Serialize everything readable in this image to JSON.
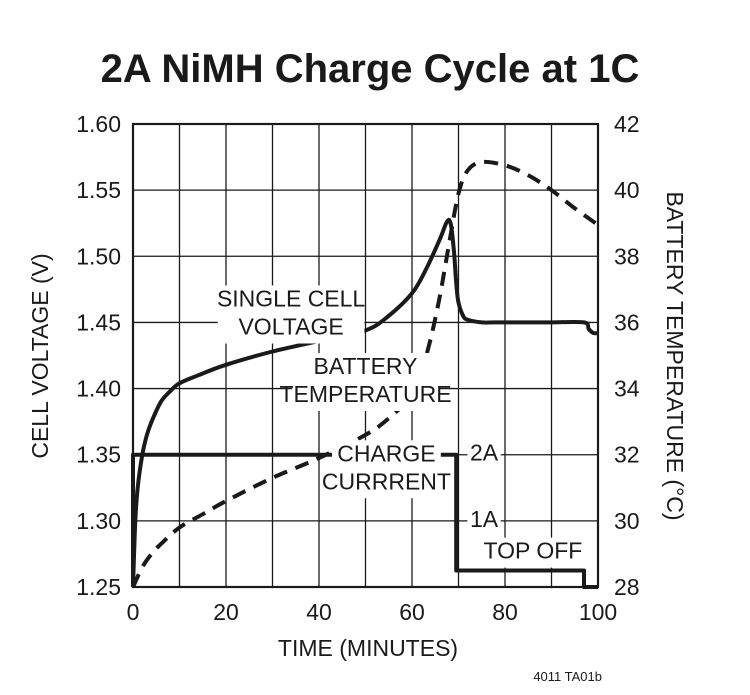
{
  "chart_data": {
    "type": "line",
    "title": "2A NiMH Charge Cycle at 1C",
    "xlabel": "TIME (MINUTES)",
    "ylabel": "CELL VOLTAGE (V)",
    "y2label": "BATTERY TEMPERATURE (°C)",
    "xlim": [
      0,
      100
    ],
    "ylim": [
      1.25,
      1.6
    ],
    "y2lim": [
      28,
      42
    ],
    "grid": true,
    "x_ticks": [
      "0",
      "20",
      "40",
      "60",
      "80",
      "100"
    ],
    "y_ticks": [
      "1.25",
      "1.30",
      "1.35",
      "1.40",
      "1.45",
      "1.50",
      "1.55",
      "1.60"
    ],
    "y2_ticks": [
      "28",
      "30",
      "32",
      "34",
      "36",
      "38",
      "40",
      "42"
    ],
    "series": [
      {
        "name": "SINGLE CELL VOLTAGE",
        "axis": "left",
        "style": "solid",
        "x": [
          0,
          0.5,
          1,
          2,
          3,
          4,
          6,
          8,
          10,
          14,
          20,
          30,
          40,
          50,
          55,
          60,
          63,
          66,
          67.5,
          68.3,
          69,
          69.5,
          70,
          71,
          72,
          75,
          78,
          85,
          90,
          97,
          98,
          99,
          100
        ],
        "y": [
          1.25,
          1.3,
          1.325,
          1.35,
          1.365,
          1.375,
          1.39,
          1.398,
          1.404,
          1.41,
          1.418,
          1.428,
          1.436,
          1.444,
          1.455,
          1.472,
          1.49,
          1.513,
          1.526,
          1.525,
          1.505,
          1.48,
          1.465,
          1.455,
          1.452,
          1.45,
          1.45,
          1.45,
          1.45,
          1.45,
          1.445,
          1.442,
          1.442
        ]
      },
      {
        "name": "BATTERY TEMPERATURE",
        "axis": "right",
        "style": "dashed",
        "x": [
          0,
          2,
          4,
          6,
          10,
          15,
          20,
          30,
          40,
          50,
          55,
          60,
          62,
          64,
          66,
          68,
          70,
          72,
          75,
          80,
          85,
          90,
          95,
          100
        ],
        "y": [
          28,
          28.6,
          29.0,
          29.3,
          29.8,
          30.2,
          30.6,
          31.3,
          31.9,
          32.6,
          33.1,
          33.8,
          34.5,
          35.5,
          36.8,
          38.4,
          39.9,
          40.6,
          40.85,
          40.75,
          40.45,
          40.0,
          39.45,
          38.95
        ]
      },
      {
        "name": "CHARGE CURRRENT",
        "axis": "left",
        "style": "solid",
        "x": [
          0,
          0,
          69.5,
          69.5,
          97,
          97,
          100
        ],
        "y": [
          1.25,
          1.35,
          1.35,
          1.2625,
          1.2625,
          1.25,
          1.25
        ]
      }
    ],
    "annotations": [
      {
        "text_lines": [
          "SINGLE CELL",
          "VOLTAGE"
        ],
        "x": 34,
        "y": 1.456
      },
      {
        "text_lines": [
          "BATTERY",
          "TEMPERATURE"
        ],
        "x": 50,
        "y": 1.405
      },
      {
        "text_lines": [
          "CHARGE",
          "CURRRENT"
        ],
        "x": 54.5,
        "y": 1.339
      },
      {
        "text_lines": [
          "2A"
        ],
        "x": 75.5,
        "y": 1.35
      },
      {
        "text_lines": [
          "1A"
        ],
        "x": 75.5,
        "y": 1.3
      },
      {
        "text_lines": [
          "TOP OFF"
        ],
        "x": 86,
        "y": 1.276
      }
    ],
    "footnote": "4011 TA01b"
  }
}
